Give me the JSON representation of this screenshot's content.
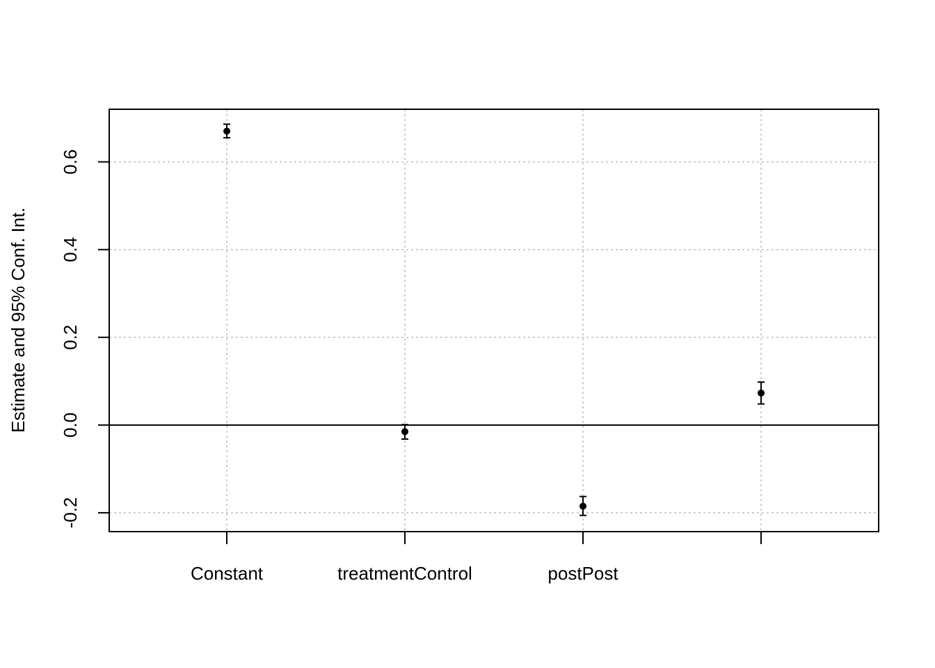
{
  "chart_data": {
    "type": "scatter",
    "title": "",
    "xlabel": "",
    "ylabel": "Estimate and 95% Conf. Int.",
    "categories": [
      "Constant",
      "treatmentControl",
      "postPost",
      ""
    ],
    "estimates": [
      0.67,
      -0.015,
      -0.185,
      0.073
    ],
    "ci_lower": [
      0.655,
      -0.032,
      -0.206,
      0.048
    ],
    "ci_upper": [
      0.686,
      0.001,
      -0.163,
      0.098
    ],
    "ylim": [
      -0.243,
      0.72
    ],
    "yticks": [
      -0.2,
      0.0,
      0.2,
      0.4,
      0.6
    ],
    "ytick_labels": [
      "-0.2",
      "0.0",
      "0.2",
      "0.4",
      "0.6"
    ],
    "reference_line": 0.0,
    "grid": true,
    "colors": {
      "marks": "#000000",
      "grid": "#bebebe"
    }
  }
}
